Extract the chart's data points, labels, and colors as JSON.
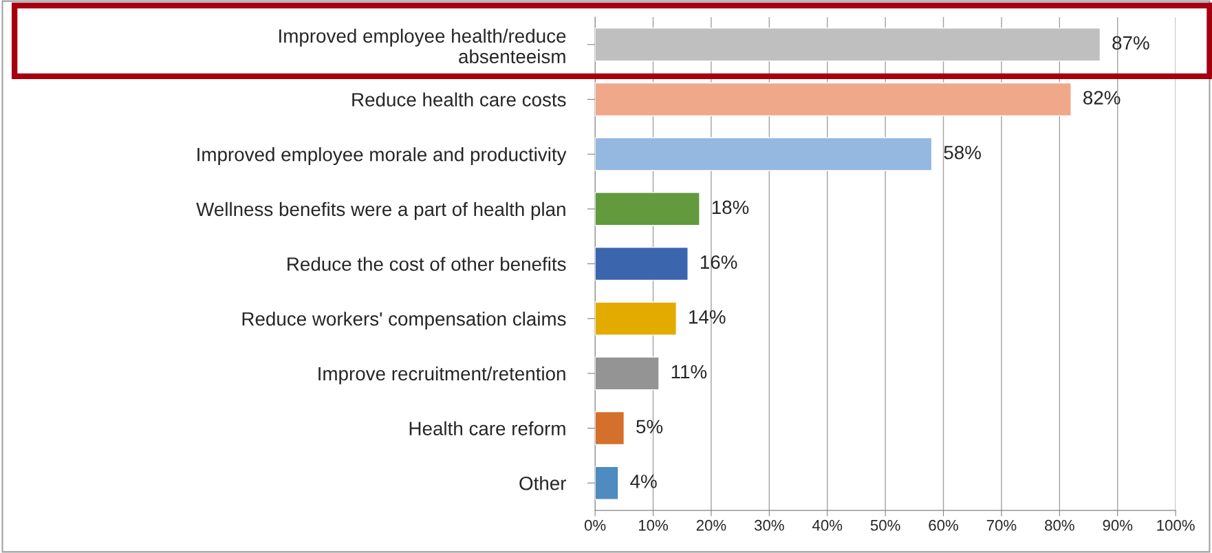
{
  "chart_data": {
    "type": "bar",
    "orientation": "horizontal",
    "categories": [
      "Improved employee health/reduce\nabsenteeism",
      "Reduce health care costs",
      "Improved employee morale and productivity",
      "Wellness benefits were a part of health plan",
      "Reduce the cost of other benefits",
      "Reduce workers' compensation claims",
      "Improve recruitment/retention",
      "Health care reform",
      "Other"
    ],
    "values": [
      87,
      82,
      58,
      18,
      16,
      14,
      11,
      5,
      4
    ],
    "colors": [
      "#bfbfbf",
      "#f0a88a",
      "#95b8e0",
      "#629a3d",
      "#3b65ad",
      "#e3ab00",
      "#949494",
      "#d4702b",
      "#4f8ac0"
    ],
    "value_labels": [
      "87%",
      "82%",
      "58%",
      "18%",
      "16%",
      "14%",
      "11%",
      "5%",
      "4%"
    ],
    "xlim": [
      0,
      100
    ],
    "xticks": [
      {
        "value": 0,
        "label": "0%"
      },
      {
        "value": 10,
        "label": "10%"
      },
      {
        "value": 20,
        "label": "20%"
      },
      {
        "value": 30,
        "label": "30%"
      },
      {
        "value": 40,
        "label": "40%"
      },
      {
        "value": 50,
        "label": "50%"
      },
      {
        "value": 60,
        "label": "60%"
      },
      {
        "value": 70,
        "label": "70%"
      },
      {
        "value": 80,
        "label": "80%"
      },
      {
        "value": 90,
        "label": "90%"
      },
      {
        "value": 100,
        "label": "100%"
      }
    ],
    "grid": "x"
  }
}
